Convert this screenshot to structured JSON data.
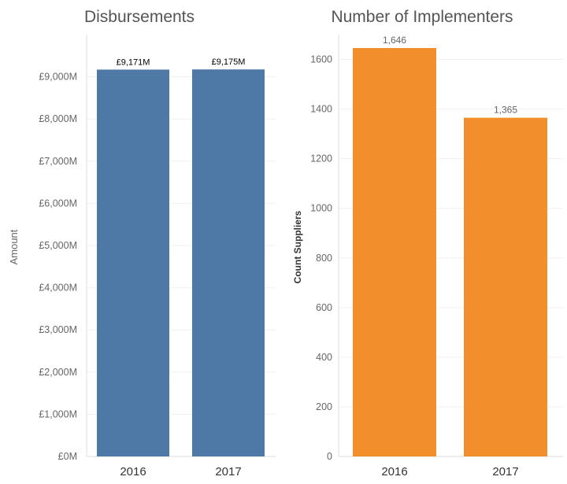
{
  "chart_data": [
    {
      "type": "bar",
      "title": "Disbursements",
      "ylabel": "Amount",
      "xlabel": "",
      "categories": [
        "2016",
        "2017"
      ],
      "values": [
        9171,
        9175
      ],
      "value_labels": [
        "£9,171M",
        "£9,175M"
      ],
      "ylim": [
        0,
        10000
      ],
      "yticks": [
        0,
        1000,
        2000,
        3000,
        4000,
        5000,
        6000,
        7000,
        8000,
        9000
      ],
      "ytick_labels": [
        "£0M",
        "£1,000M",
        "£2,000M",
        "£3,000M",
        "£4,000M",
        "£5,000M",
        "£6,000M",
        "£7,000M",
        "£8,000M",
        "£9,000M"
      ],
      "color": "#4e79a7",
      "grid": true
    },
    {
      "type": "bar",
      "title": "Number of Implementers",
      "ylabel": "Count Suppliers",
      "xlabel": "",
      "categories": [
        "2016",
        "2017"
      ],
      "values": [
        1646,
        1365
      ],
      "value_labels": [
        "1,646",
        "1,365"
      ],
      "ylim": [
        0,
        1700
      ],
      "yticks": [
        0,
        200,
        400,
        600,
        800,
        1000,
        1200,
        1400,
        1600
      ],
      "ytick_labels": [
        "0",
        "200",
        "400",
        "600",
        "800",
        "1000",
        "1200",
        "1400",
        "1600"
      ],
      "color": "#f28e2b",
      "grid": true
    }
  ]
}
